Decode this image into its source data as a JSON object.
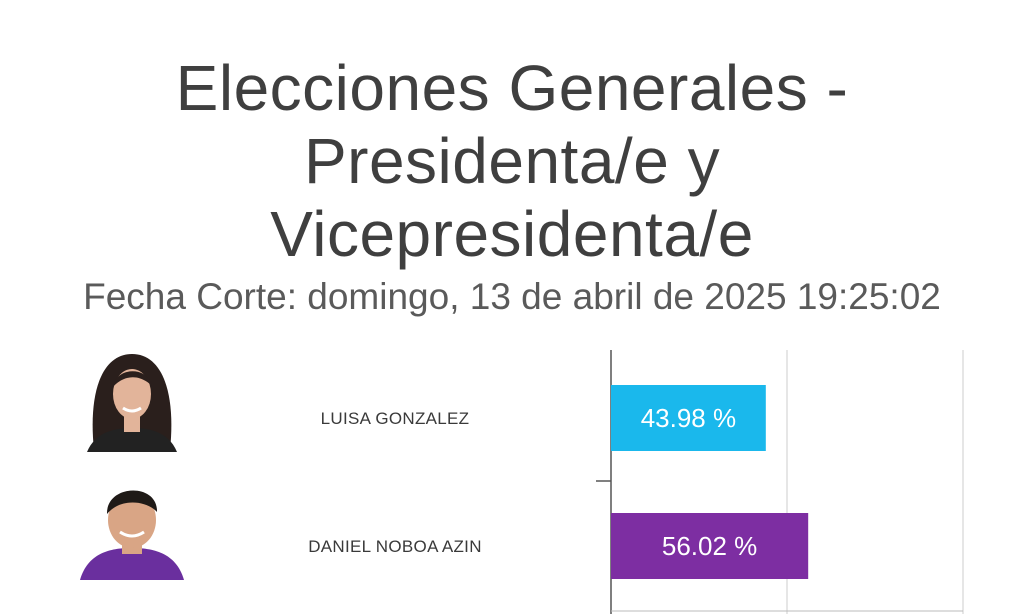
{
  "header": {
    "title_lines": [
      "Elecciones Generales -",
      "Presidenta/e y",
      "Vicepresidenta/e"
    ],
    "subtitle": "Fecha Corte: domingo, 13 de abril de 2025 19:25:02"
  },
  "chart_data": {
    "type": "bar",
    "orientation": "horizontal",
    "categories": [
      "LUISA GONZALEZ",
      "DANIEL NOBOA AZIN"
    ],
    "values": [
      43.98,
      56.02
    ],
    "value_labels": [
      "43.98 %",
      "56.02 %"
    ],
    "colors": [
      "#1ab8ec",
      "#7d2ea2"
    ],
    "xlim": [
      0,
      100
    ],
    "grid": true
  },
  "avatars": [
    {
      "icon": "candidate-photo-female",
      "hair": "#2a1f1c",
      "skin": "#e2b49a",
      "clothes": "#222222"
    },
    {
      "icon": "candidate-photo-male",
      "hair": "#1f1a17",
      "skin": "#d9a585",
      "clothes": "#6a2f9e"
    }
  ]
}
